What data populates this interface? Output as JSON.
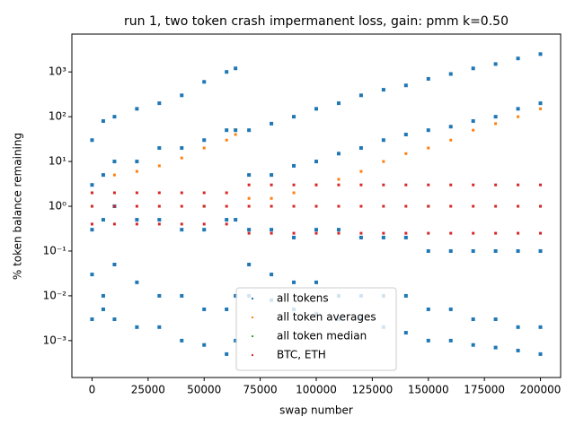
{
  "chart_data": {
    "type": "scatter",
    "title": "run 1, two token crash impermanent loss, gain: pmm k=0.50",
    "x_label": "swap number",
    "y_label": "% token balance remaining",
    "xlim": [
      -9000,
      209000
    ],
    "xticks": [
      0,
      25000,
      50000,
      75000,
      100000,
      125000,
      150000,
      175000,
      200000
    ],
    "ylim": [
      0.00015,
      7000
    ],
    "yscale": "log",
    "yticks": [
      {
        "value": 0.001,
        "label": "10⁻³"
      },
      {
        "value": 0.01,
        "label": "10⁻²"
      },
      {
        "value": 0.1,
        "label": "10⁻¹"
      },
      {
        "value": 1,
        "label": "10⁰"
      },
      {
        "value": 10,
        "label": "10¹"
      },
      {
        "value": 100,
        "label": "10²"
      },
      {
        "value": 1000,
        "label": "10³"
      }
    ],
    "legend": "lower center",
    "series": [
      {
        "name": "all tokens",
        "color": "#1f77b4",
        "x": [
          0,
          0,
          0,
          0,
          0,
          5000,
          5000,
          5000,
          5000,
          5000,
          10000,
          10000,
          10000,
          10000,
          10000,
          20000,
          20000,
          20000,
          20000,
          20000,
          30000,
          30000,
          30000,
          30000,
          30000,
          40000,
          40000,
          40000,
          40000,
          40000,
          50000,
          50000,
          50000,
          50000,
          50000,
          60000,
          60000,
          60000,
          60000,
          60000,
          64000,
          64000,
          64000,
          64000,
          64000,
          70000,
          70000,
          70000,
          70000,
          70000,
          80000,
          80000,
          80000,
          80000,
          80000,
          90000,
          90000,
          90000,
          90000,
          90000,
          100000,
          100000,
          100000,
          100000,
          100000,
          110000,
          110000,
          110000,
          110000,
          110000,
          120000,
          120000,
          120000,
          120000,
          120000,
          130000,
          130000,
          130000,
          130000,
          130000,
          140000,
          140000,
          140000,
          140000,
          140000,
          150000,
          150000,
          150000,
          150000,
          150000,
          160000,
          160000,
          160000,
          160000,
          160000,
          170000,
          170000,
          170000,
          170000,
          170000,
          180000,
          180000,
          180000,
          180000,
          180000,
          190000,
          190000,
          190000,
          190000,
          190000,
          200000,
          200000,
          200000,
          200000,
          200000
        ],
        "values": [
          30,
          3,
          0.3,
          0.03,
          0.003,
          80,
          5,
          0.5,
          0.01,
          0.005,
          100,
          10,
          1,
          0.05,
          0.003,
          150,
          10,
          0.5,
          0.02,
          0.002,
          200,
          20,
          0.5,
          0.01,
          0.002,
          300,
          20,
          0.3,
          0.01,
          0.001,
          600,
          30,
          0.3,
          0.005,
          0.0008,
          1000,
          50,
          0.5,
          0.005,
          0.0005,
          1200,
          50,
          0.5,
          0.01,
          0.001,
          50,
          5,
          0.3,
          0.05,
          0.01,
          70,
          5,
          0.3,
          0.03,
          0.008,
          100,
          8,
          0.2,
          0.02,
          0.005,
          150,
          10,
          0.3,
          0.02,
          0.004,
          200,
          15,
          0.3,
          0.01,
          0.003,
          300,
          20,
          0.2,
          0.01,
          0.003,
          400,
          30,
          0.2,
          0.01,
          0.002,
          500,
          40,
          0.2,
          0.01,
          0.0015,
          700,
          50,
          0.1,
          0.005,
          0.001,
          900,
          60,
          0.1,
          0.005,
          0.001,
          1200,
          80,
          0.1,
          0.003,
          0.0008,
          1500,
          100,
          0.1,
          0.003,
          0.0007,
          2000,
          150,
          0.1,
          0.002,
          0.0006,
          2500,
          200,
          0.1,
          0.002,
          0.0005
        ]
      },
      {
        "name": "all token averages",
        "color": "#ff7f0e",
        "x": [
          0,
          10000,
          20000,
          30000,
          40000,
          50000,
          60000,
          64000,
          70000,
          80000,
          90000,
          100000,
          110000,
          120000,
          130000,
          140000,
          150000,
          160000,
          170000,
          180000,
          190000,
          200000
        ],
        "values": [
          2,
          5,
          6,
          8,
          12,
          20,
          30,
          40,
          1.5,
          1.5,
          2,
          3,
          4,
          6,
          10,
          15,
          20,
          30,
          50,
          70,
          100,
          150
        ]
      },
      {
        "name": "all token median",
        "color": "#2ca02c",
        "x": [
          0,
          50000,
          100000,
          150000,
          200000
        ],
        "values": [
          1,
          1,
          1,
          1,
          1
        ]
      },
      {
        "name": "BTC, ETH",
        "color": "#d62728",
        "x": [
          0,
          0,
          0,
          10000,
          10000,
          10000,
          20000,
          20000,
          20000,
          30000,
          30000,
          30000,
          40000,
          40000,
          40000,
          50000,
          50000,
          50000,
          60000,
          60000,
          60000,
          70000,
          70000,
          70000,
          80000,
          80000,
          80000,
          90000,
          90000,
          90000,
          100000,
          100000,
          100000,
          110000,
          110000,
          110000,
          120000,
          120000,
          120000,
          130000,
          130000,
          130000,
          140000,
          140000,
          140000,
          150000,
          150000,
          150000,
          160000,
          160000,
          160000,
          170000,
          170000,
          170000,
          180000,
          180000,
          180000,
          190000,
          190000,
          190000,
          200000,
          200000,
          200000
        ],
        "values": [
          2,
          1,
          0.4,
          2,
          1,
          0.4,
          2,
          1,
          0.4,
          2,
          1,
          0.4,
          2,
          1,
          0.4,
          2,
          1,
          0.4,
          2,
          1,
          0.4,
          3,
          1,
          0.25,
          3,
          1,
          0.25,
          3,
          1,
          0.25,
          3,
          1,
          0.25,
          3,
          1,
          0.25,
          3,
          1,
          0.25,
          3,
          1,
          0.25,
          3,
          1,
          0.25,
          3,
          1,
          0.25,
          3,
          1,
          0.25,
          3,
          1,
          0.25,
          3,
          1,
          0.25,
          3,
          1,
          0.25,
          3,
          1,
          0.25
        ]
      }
    ]
  }
}
